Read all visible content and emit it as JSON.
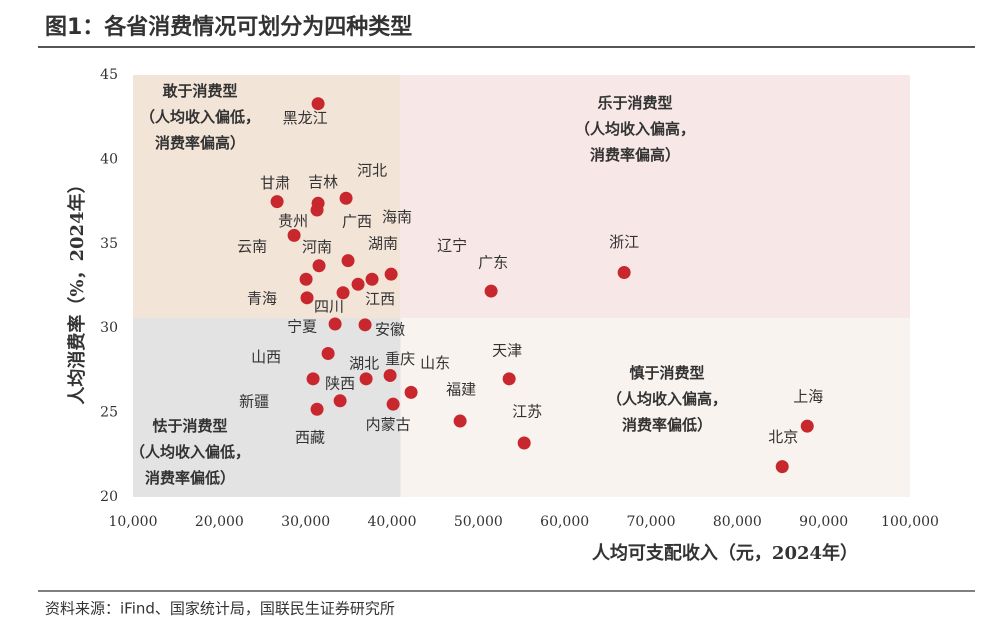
{
  "header": {
    "title": "图1：各省消费情况可划分为四种类型"
  },
  "chart_data": {
    "type": "scatter",
    "x_label": "人均可支配收入（元，2024年）",
    "y_label": "人均消费率（%，2024年）",
    "point_labels": [
      "黑龙江",
      "甘肃",
      "吉林",
      "广西",
      "河北",
      "贵州",
      "海南",
      "云南",
      "河南",
      "江西",
      "湖南",
      "辽宁",
      "青海",
      "四川",
      "广东",
      "浙江",
      "宁夏",
      "安徽",
      "山西",
      "新疆",
      "陕西",
      "西藏",
      "湖北",
      "重庆",
      "内蒙古",
      "山东",
      "福建",
      "天津",
      "江苏",
      "上海",
      "北京"
    ],
    "x": [
      31440,
      26690,
      31440,
      31320,
      34680,
      28660,
      34910,
      30050,
      31550,
      36070,
      37690,
      39900,
      30160,
      34330,
      51480,
      66890,
      33410,
      36880,
      32600,
      30860,
      33990,
      31320,
      37000,
      39780,
      40130,
      42210,
      47890,
      53570,
      55310,
      88100,
      85200
    ],
    "values": [
      43.3,
      37.5,
      37.4,
      37.0,
      37.7,
      35.5,
      34.0,
      32.9,
      33.7,
      32.6,
      32.9,
      33.2,
      31.8,
      32.1,
      32.2,
      33.3,
      30.25,
      30.2,
      28.5,
      27.0,
      25.7,
      25.2,
      27.0,
      27.2,
      25.5,
      26.2,
      24.5,
      27.0,
      23.2,
      24.2,
      21.8
    ],
    "color": "#c8282d",
    "xlim": [
      10000,
      100000
    ],
    "xticks": [
      {
        "value": 10000,
        "label": "10,000"
      },
      {
        "value": 20000,
        "label": "20,000"
      },
      {
        "value": 30000,
        "label": "30,000"
      },
      {
        "value": 40000,
        "label": "40,000"
      },
      {
        "value": 50000,
        "label": "50,000"
      },
      {
        "value": 60000,
        "label": "60,000"
      },
      {
        "value": 70000,
        "label": "70,000"
      },
      {
        "value": 80000,
        "label": "80,000"
      },
      {
        "value": 90000,
        "label": "90,000"
      },
      {
        "value": 100000,
        "label": "100,000"
      }
    ],
    "ylim": [
      20,
      45
    ],
    "yticks": [
      20,
      25,
      30,
      35,
      40,
      45
    ],
    "divider_x": 41000,
    "divider_y": 30.6,
    "quadrants": [
      {
        "lines": [
          "敢于消费型",
          "（人均收入偏低，",
          "消费率偏高）"
        ],
        "fill": "#f3e4d8"
      },
      {
        "lines": [
          "乐于消费型",
          "（人均收入偏高，",
          "消费率偏高）"
        ],
        "fill": "#f8e7e7"
      },
      {
        "lines": [
          "怯于消费型",
          "（人均收入偏低，",
          "消费率偏低）"
        ],
        "fill": "#e3e3e3"
      },
      {
        "lines": [
          "慎于消费型",
          "（人均收入偏高，",
          "消费率偏低）"
        ],
        "fill": "#f8f3ef"
      }
    ]
  },
  "footer": {
    "source": "资料来源：iFind、国家统计局，国联民生证券研究所"
  }
}
